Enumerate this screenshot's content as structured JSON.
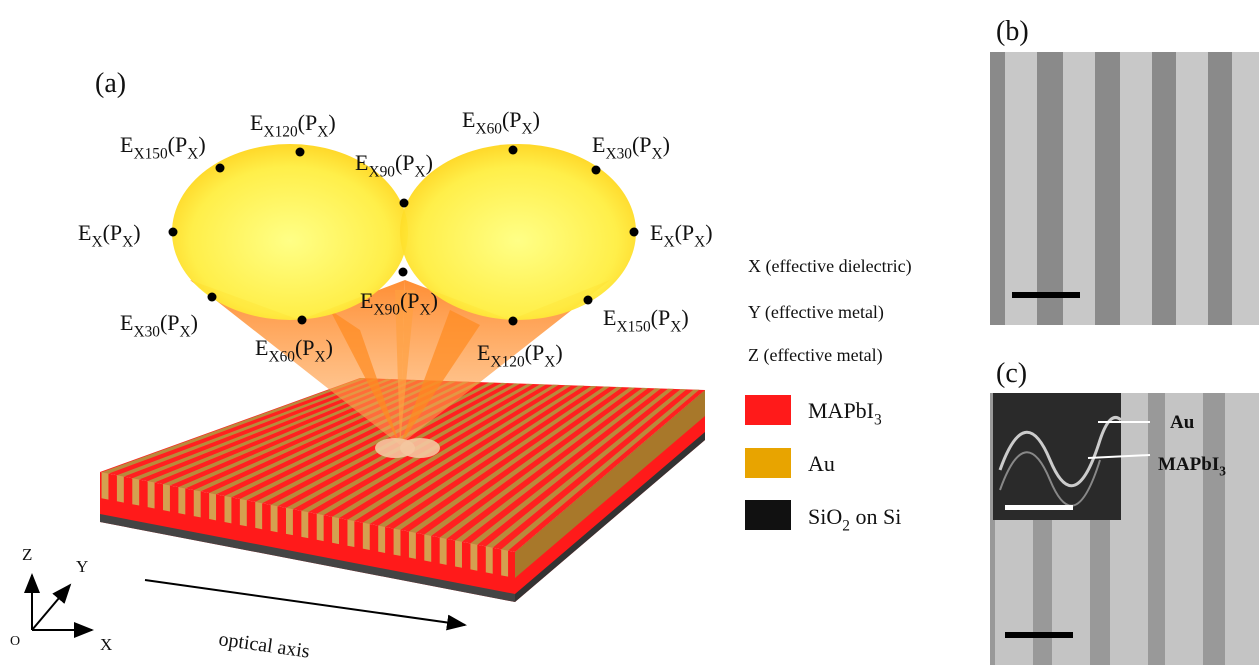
{
  "panels": {
    "a": "(a)",
    "b": "(b)",
    "c": "(c)"
  },
  "field_labels": [
    [
      "E",
      "X150",
      "(P",
      "X",
      ")"
    ],
    [
      "E",
      "X120",
      "(P",
      "X",
      ")"
    ],
    [
      "E",
      "X90",
      "(P",
      "X",
      ")"
    ],
    [
      "E",
      "X60",
      "(P",
      "X",
      ")"
    ],
    [
      "E",
      "X30",
      "(P",
      "X",
      ")"
    ],
    [
      "E",
      "X",
      "(P",
      "X",
      ")"
    ],
    [
      "E",
      "X",
      "(P",
      "X",
      ")"
    ],
    [
      "E",
      "X30",
      "(P",
      "X",
      ")"
    ],
    [
      "E",
      "X90",
      "(P",
      "X",
      ")"
    ],
    [
      "E",
      "X60",
      "(P",
      "X",
      ")"
    ],
    [
      "E",
      "X150",
      "(P",
      "X",
      ")"
    ],
    [
      "E",
      "X120",
      "(P",
      "X",
      ")"
    ]
  ],
  "axis_legend": [
    "X (effective dielectric)",
    "Y (effective metal)",
    "Z (effective metal)"
  ],
  "materials": [
    [
      "MAPbI",
      "3"
    ],
    [
      "Au"
    ],
    [
      "SiO",
      "2",
      " on Si"
    ]
  ],
  "coordinate_axes": {
    "z": "Z",
    "y": "Y",
    "x": "X",
    "origin": "O"
  },
  "optical_axis": "optical axis",
  "inset_labels": {
    "au": "Au",
    "mapbi3": [
      "MAPbI",
      "3"
    ]
  }
}
